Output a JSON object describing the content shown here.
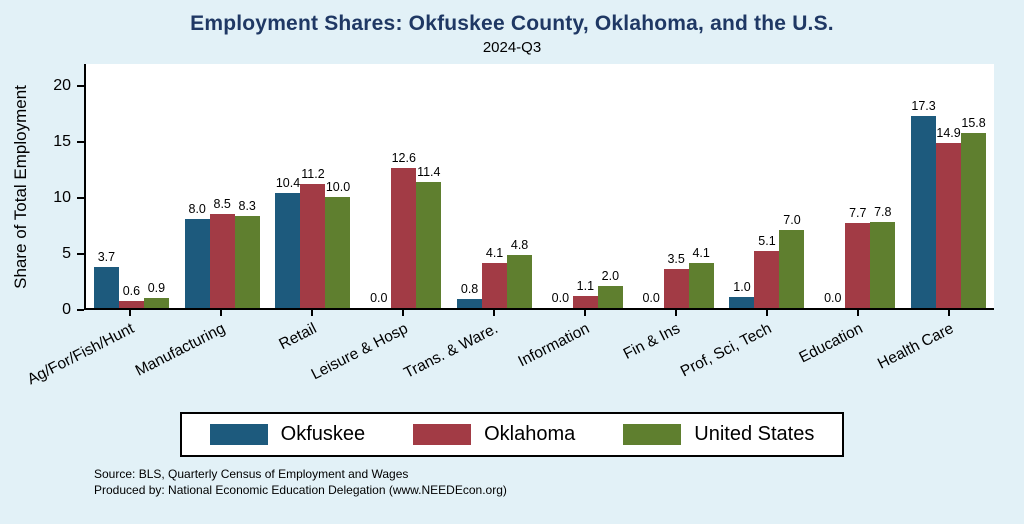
{
  "title": "Employment Shares: Okfuskee County, Oklahoma, and the U.S.",
  "subtitle": "2024-Q3",
  "ylabel": "Share of Total Employment",
  "footer": {
    "source": "Source: BLS, Quarterly Census of Employment and Wages",
    "produced_by": "Produced by: National Economic Education Delegation (www.NEEDEcon.org)"
  },
  "colors": {
    "background": "#e2f1f7",
    "plot_background": "#ffffff",
    "title_text": "#1f3864",
    "okfuskee": "#1d5a7d",
    "oklahoma": "#a23b45",
    "united_states": "#5f7f2f"
  },
  "chart_data": {
    "type": "bar",
    "title": "Employment Shares: Okfuskee County, Oklahoma, and the U.S.",
    "subtitle": "2024-Q3",
    "ylabel": "Share of Total Employment",
    "categories": [
      "Ag/For/Fish/Hunt",
      "Manufacturing",
      "Retail",
      "Leisure & Hosp",
      "Trans. & Ware.",
      "Information",
      "Fin & Ins",
      "Prof, Sci, Tech",
      "Education",
      "Health Care"
    ],
    "series": [
      {
        "name": "Okfuskee",
        "color_key": "okfuskee",
        "values": [
          3.7,
          8.0,
          10.4,
          0.0,
          0.8,
          0.0,
          0.0,
          1.0,
          0.0,
          17.3
        ]
      },
      {
        "name": "Oklahoma",
        "color_key": "oklahoma",
        "values": [
          0.6,
          8.5,
          11.2,
          12.6,
          4.1,
          1.1,
          3.5,
          5.1,
          7.7,
          14.9
        ]
      },
      {
        "name": "United States",
        "color_key": "united_states",
        "values": [
          0.9,
          8.3,
          10.0,
          11.4,
          4.8,
          2.0,
          4.1,
          7.0,
          7.8,
          15.8
        ]
      }
    ],
    "yticks": [
      0,
      5,
      10,
      15,
      20
    ],
    "ylim": [
      0,
      22
    ],
    "grid": false,
    "legend_position": "bottom",
    "bar_value_labels": true
  }
}
